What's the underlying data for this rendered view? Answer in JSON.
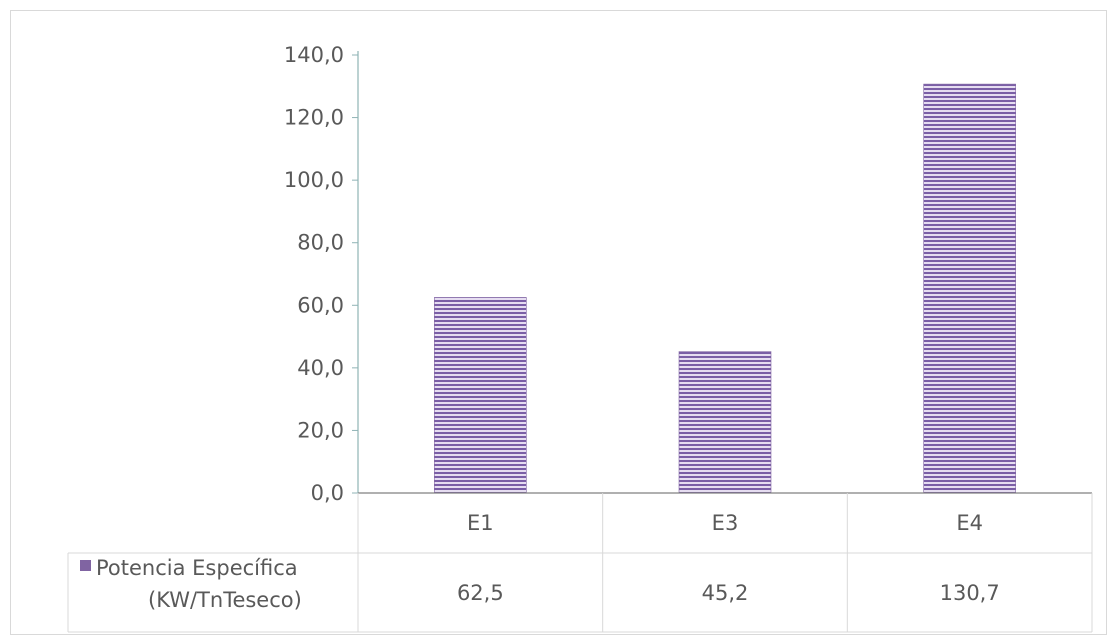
{
  "chart_data": {
    "type": "bar",
    "categories": [
      "E1",
      "E3",
      "E4"
    ],
    "series": [
      {
        "name": "Potencia Específica (KW/TnTeseco)",
        "name_lines": [
          "Potencia Específica",
          "(KW/TnTeseco)"
        ],
        "values": [
          62.5,
          45.2,
          130.7
        ],
        "value_labels": [
          "62,5",
          "45,2",
          "130,7"
        ]
      }
    ],
    "yticks": [
      "0,0",
      "20,0",
      "40,0",
      "60,0",
      "80,0",
      "100,0",
      "120,0",
      "140,0"
    ],
    "ylim": [
      0,
      140
    ],
    "grid": false,
    "data_table": true,
    "colors": {
      "bar_dark": "#7a5ea6",
      "bar_light": "#e6ddf1",
      "axis": "#8fb3b5",
      "table_border": "#d9d9d9",
      "text": "#595959",
      "legend_key": "#8064a2"
    }
  }
}
